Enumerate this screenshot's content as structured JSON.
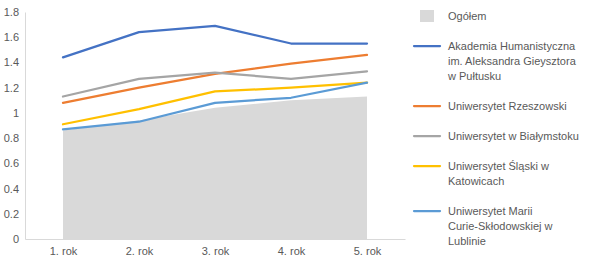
{
  "chart_data": {
    "type": "line",
    "categories": [
      "1. rok",
      "2. rok",
      "3. rok",
      "4. rok",
      "5. rok"
    ],
    "series": [
      {
        "name": "Ogółem",
        "type": "area",
        "color": "#d9d9d9",
        "values": [
          0.86,
          0.94,
          1.04,
          1.1,
          1.13
        ]
      },
      {
        "name": "Akademia Humanistyczna im. Aleksandra Gieysztora w Pułtusku",
        "type": "line",
        "color": "#4472c4",
        "values": [
          1.44,
          1.64,
          1.69,
          1.55,
          1.55
        ]
      },
      {
        "name": "Uniwersytet Rzeszowski",
        "type": "line",
        "color": "#ed7d31",
        "values": [
          1.08,
          1.2,
          1.31,
          1.39,
          1.46
        ]
      },
      {
        "name": "Uniwersytet w Białymstoku",
        "type": "line",
        "color": "#a5a5a5",
        "values": [
          1.13,
          1.27,
          1.32,
          1.27,
          1.33
        ]
      },
      {
        "name": "Uniwersytet Śląski w Katowicach",
        "type": "line",
        "color": "#ffc000",
        "values": [
          0.91,
          1.03,
          1.17,
          1.2,
          1.24
        ]
      },
      {
        "name": "Uniwersytet Marii Curie-Skłodowskiej w Lublinie",
        "type": "line",
        "color": "#5b9bd5",
        "values": [
          0.87,
          0.93,
          1.08,
          1.12,
          1.24
        ]
      }
    ],
    "ylim": [
      0,
      1.8
    ],
    "yticks": [
      0,
      0.2,
      0.4,
      0.6,
      0.8,
      1,
      1.2,
      1.4,
      1.6,
      1.8
    ],
    "grid": false,
    "legend": "right"
  }
}
